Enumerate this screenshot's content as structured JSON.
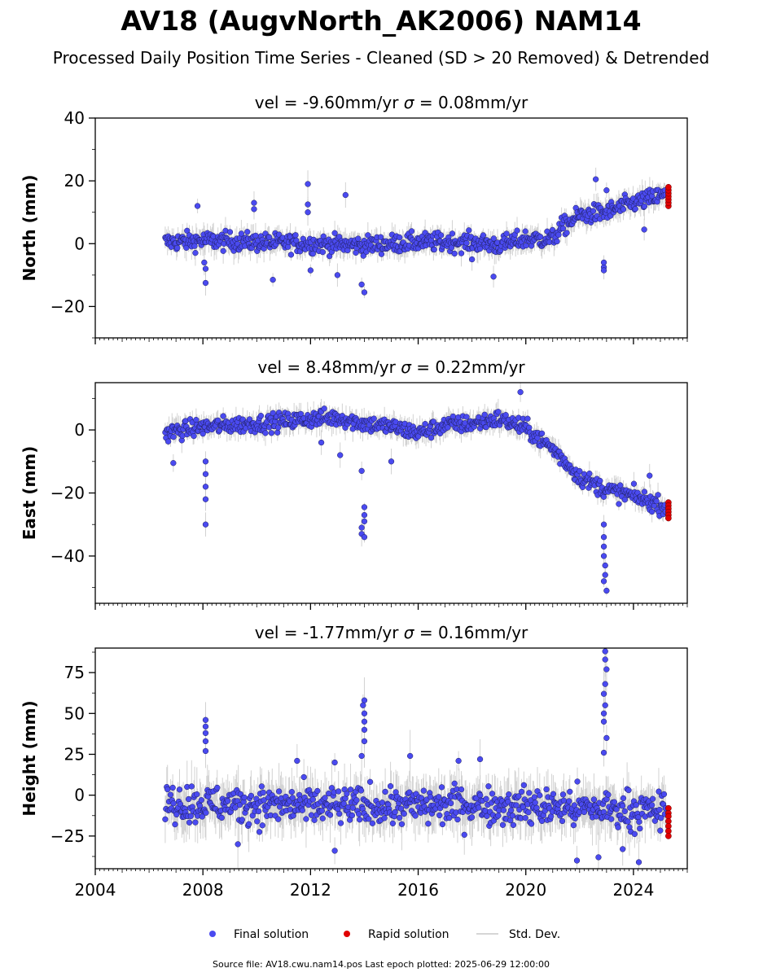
{
  "figure": {
    "title": "AV18 (AugvNorth_AK2006) NAM14",
    "subtitle": "Processed Daily Position Time Series - Cleaned (SD > 20 Removed) & Detrended",
    "footer": "Source file: AV18.cwu.nam14.pos  Last epoch plotted: 2025-06-29 12:00:00",
    "colors": {
      "final": "#4a4af0",
      "rapid": "#e00000",
      "stddev": "#c8c8c8",
      "axis": "#000000"
    }
  },
  "legend": {
    "placement": "bottom-center",
    "items": [
      {
        "label": "Final solution",
        "kind": "dot",
        "color": "#4a4af0"
      },
      {
        "label": "Rapid solution",
        "kind": "dot",
        "color": "#e00000"
      },
      {
        "label": "Std. Dev.",
        "kind": "line",
        "color": "#c8c8c8"
      }
    ]
  },
  "chart_data": [
    {
      "type": "scatter",
      "title": "vel = -9.60mm/yr",
      "sigma": "= 0.08mm/yr",
      "ylabel": "North (mm)",
      "xlim": [
        2004,
        2026
      ],
      "ylim": [
        -30,
        40
      ],
      "yticks": [
        40,
        20,
        0,
        -20
      ],
      "ytick_labels": [
        "40",
        "20",
        "0",
        "−20"
      ],
      "xticks": [
        2004,
        2008,
        2012,
        2016,
        2020,
        2024
      ],
      "series": [
        {
          "name": "Final solution",
          "trend": [
            [
              2006.6,
              0.5
            ],
            [
              2008.0,
              1.0
            ],
            [
              2010.0,
              0.5
            ],
            [
              2012.0,
              0.0
            ],
            [
              2014.0,
              -0.5
            ],
            [
              2016.0,
              0.5
            ],
            [
              2018.0,
              0.5
            ],
            [
              2019.0,
              -0.5
            ],
            [
              2020.0,
              1.5
            ],
            [
              2021.0,
              1.5
            ],
            [
              2021.3,
              5.0
            ],
            [
              2022.0,
              9.0
            ],
            [
              2023.0,
              10.0
            ],
            [
              2024.0,
              13.0
            ],
            [
              2025.2,
              15.5
            ]
          ],
          "spread": 2.8,
          "outliers": [
            [
              2008.1,
              -12.5
            ],
            [
              2008.1,
              -8.0
            ],
            [
              2008.05,
              -6.0
            ],
            [
              2009.9,
              13.0
            ],
            [
              2009.9,
              11.0
            ],
            [
              2011.9,
              19.0
            ],
            [
              2011.9,
              12.5
            ],
            [
              2011.9,
              10.0
            ],
            [
              2013.3,
              15.5
            ],
            [
              2013.9,
              -13.0
            ],
            [
              2014.0,
              -15.5
            ],
            [
              2013.0,
              -10.0
            ],
            [
              2010.6,
              -11.5
            ],
            [
              2012.0,
              -8.5
            ],
            [
              2018.0,
              -5.0
            ],
            [
              2018.8,
              -10.5
            ],
            [
              2022.9,
              -7.5
            ],
            [
              2022.9,
              -8.5
            ],
            [
              2022.9,
              -6.0
            ],
            [
              2022.6,
              20.5
            ],
            [
              2023.0,
              17.0
            ],
            [
              2024.4,
              4.5
            ],
            [
              2007.8,
              12.0
            ]
          ]
        },
        {
          "name": "Rapid solution",
          "points": [
            [
              2025.3,
              12.0
            ],
            [
              2025.3,
              13.0
            ],
            [
              2025.3,
              14.0
            ],
            [
              2025.3,
              15.0
            ],
            [
              2025.3,
              16.0
            ],
            [
              2025.3,
              17.0
            ],
            [
              2025.3,
              18.0
            ]
          ]
        }
      ]
    },
    {
      "type": "scatter",
      "title": "vel = 8.48mm/yr",
      "sigma": "= 0.22mm/yr",
      "ylabel": "East (mm)",
      "xlim": [
        2004,
        2026
      ],
      "ylim": [
        -55,
        15
      ],
      "yticks": [
        0,
        -20,
        -40
      ],
      "ytick_labels": [
        "0",
        "−20",
        "−40"
      ],
      "xticks": [
        2004,
        2008,
        2012,
        2016,
        2020,
        2024
      ],
      "series": [
        {
          "name": "Final solution",
          "trend": [
            [
              2006.6,
              -1.0
            ],
            [
              2008.0,
              1.0
            ],
            [
              2010.0,
              2.0
            ],
            [
              2012.0,
              3.5
            ],
            [
              2013.0,
              4.0
            ],
            [
              2014.0,
              2.0
            ],
            [
              2015.0,
              1.0
            ],
            [
              2016.0,
              -1.0
            ],
            [
              2017.0,
              1.5
            ],
            [
              2018.0,
              2.0
            ],
            [
              2019.0,
              3.5
            ],
            [
              2020.0,
              0.5
            ],
            [
              2021.0,
              -6.0
            ],
            [
              2022.0,
              -15.0
            ],
            [
              2023.0,
              -19.0
            ],
            [
              2024.0,
              -21.0
            ],
            [
              2025.2,
              -24.5
            ]
          ],
          "spread": 2.6,
          "outliers": [
            [
              2008.1,
              -30.0
            ],
            [
              2008.1,
              -22.0
            ],
            [
              2008.1,
              -18.0
            ],
            [
              2008.1,
              -14.0
            ],
            [
              2008.1,
              -10.0
            ],
            [
              2006.9,
              -10.5
            ],
            [
              2013.9,
              -13.0
            ],
            [
              2014.0,
              -24.5
            ],
            [
              2014.0,
              -27.0
            ],
            [
              2014.0,
              -29.0
            ],
            [
              2013.9,
              -31.0
            ],
            [
              2013.9,
              -33.0
            ],
            [
              2014.0,
              -34.0
            ],
            [
              2019.8,
              12.0
            ],
            [
              2022.9,
              -30.0
            ],
            [
              2022.9,
              -34.0
            ],
            [
              2022.9,
              -37.0
            ],
            [
              2022.9,
              -40.0
            ],
            [
              2022.95,
              -43.0
            ],
            [
              2022.95,
              -46.0
            ],
            [
              2022.9,
              -48.0
            ],
            [
              2023.0,
              -51.0
            ],
            [
              2012.4,
              -4.0
            ],
            [
              2013.1,
              -8.0
            ],
            [
              2015.0,
              -10.0
            ],
            [
              2024.6,
              -14.5
            ]
          ]
        },
        {
          "name": "Rapid solution",
          "points": [
            [
              2025.3,
              -23.0
            ],
            [
              2025.3,
              -24.0
            ],
            [
              2025.3,
              -25.0
            ],
            [
              2025.3,
              -26.0
            ],
            [
              2025.3,
              -27.0
            ],
            [
              2025.3,
              -28.0
            ]
          ]
        }
      ]
    },
    {
      "type": "scatter",
      "title": "vel = -1.77mm/yr",
      "sigma": "= 0.16mm/yr",
      "ylabel": "Height (mm)",
      "xlabel": "",
      "xlim": [
        2004,
        2026
      ],
      "ylim": [
        -45,
        90
      ],
      "yticks": [
        75,
        50,
        25,
        0,
        -25
      ],
      "ytick_labels": [
        "75",
        "50",
        "25",
        "0",
        "−25"
      ],
      "xticks": [
        2004,
        2008,
        2012,
        2016,
        2020,
        2024
      ],
      "xtick_labels": [
        "2004",
        "2008",
        "2012",
        "2016",
        "2020",
        "2024"
      ],
      "series": [
        {
          "name": "Final solution",
          "trend": [
            [
              2006.6,
              -5.0
            ],
            [
              2010.0,
              -6.0
            ],
            [
              2014.0,
              -7.0
            ],
            [
              2018.0,
              -6.0
            ],
            [
              2022.0,
              -8.0
            ],
            [
              2025.2,
              -10.0
            ]
          ],
          "spread": 11,
          "outliers": [
            [
              2008.1,
              46.0
            ],
            [
              2008.1,
              42.0
            ],
            [
              2008.1,
              38.0
            ],
            [
              2008.1,
              33.0
            ],
            [
              2008.1,
              27.0
            ],
            [
              2014.0,
              58.0
            ],
            [
              2013.95,
              55.0
            ],
            [
              2014.0,
              50.0
            ],
            [
              2014.0,
              45.0
            ],
            [
              2014.0,
              40.0
            ],
            [
              2014.0,
              33.0
            ],
            [
              2013.9,
              24.0
            ],
            [
              2022.95,
              88.0
            ],
            [
              2022.95,
              83.0
            ],
            [
              2023.0,
              77.0
            ],
            [
              2022.95,
              68.0
            ],
            [
              2022.9,
              62.0
            ],
            [
              2022.95,
              55.0
            ],
            [
              2022.9,
              50.0
            ],
            [
              2022.9,
              45.0
            ],
            [
              2023.0,
              35.0
            ],
            [
              2022.9,
              26.0
            ],
            [
              2021.9,
              -40.0
            ],
            [
              2022.7,
              -38.0
            ],
            [
              2024.2,
              -41.0
            ],
            [
              2012.9,
              -34.0
            ],
            [
              2009.3,
              -30.0
            ],
            [
              2023.6,
              -33.0
            ],
            [
              2011.5,
              21.0
            ],
            [
              2012.9,
              20.0
            ],
            [
              2015.7,
              24.0
            ],
            [
              2017.5,
              21.0
            ],
            [
              2018.3,
              22.0
            ]
          ]
        },
        {
          "name": "Rapid solution",
          "points": [
            [
              2025.3,
              -8.0
            ],
            [
              2025.3,
              -11.0
            ],
            [
              2025.3,
              -13.0
            ],
            [
              2025.3,
              -16.0
            ],
            [
              2025.3,
              -19.0
            ],
            [
              2025.3,
              -22.0
            ],
            [
              2025.3,
              -25.0
            ]
          ]
        }
      ]
    }
  ]
}
